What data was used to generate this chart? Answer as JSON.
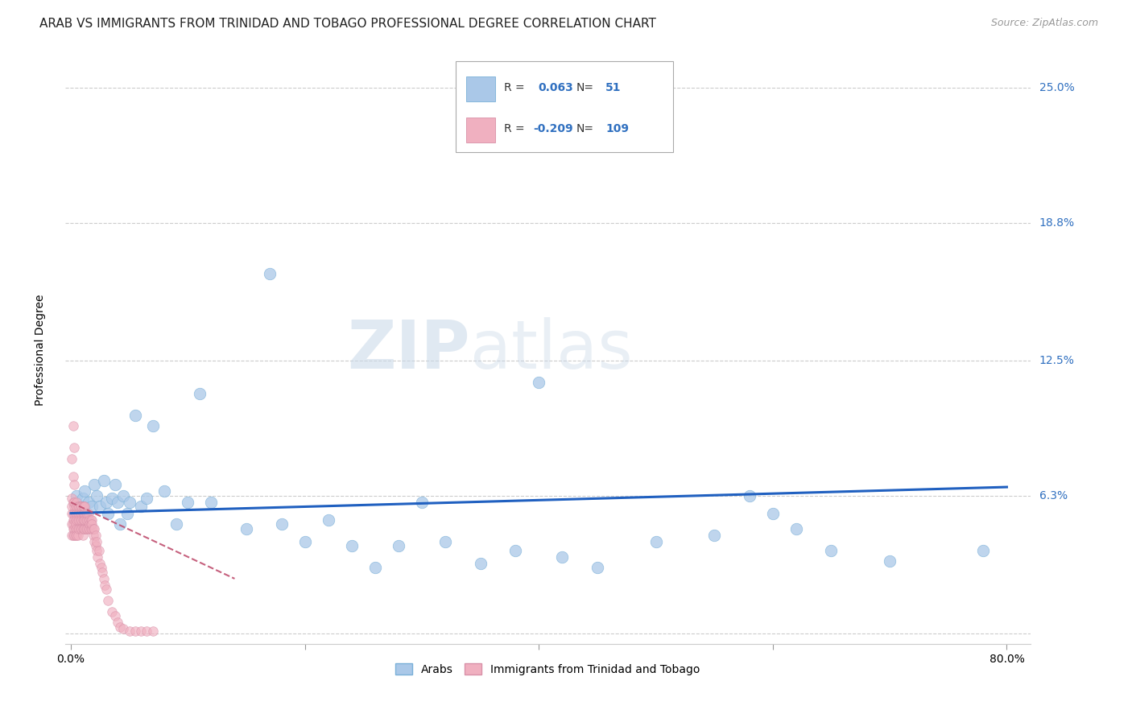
{
  "title": "ARAB VS IMMIGRANTS FROM TRINIDAD AND TOBAGO PROFESSIONAL DEGREE CORRELATION CHART",
  "source": "Source: ZipAtlas.com",
  "ylabel": "Professional Degree",
  "y_ticks": [
    0.0,
    0.063,
    0.125,
    0.188,
    0.25
  ],
  "y_tick_labels": [
    "",
    "6.3%",
    "12.5%",
    "18.8%",
    "25.0%"
  ],
  "x_ticks": [
    0.0,
    0.2,
    0.4,
    0.6,
    0.8
  ],
  "x_tick_labels": [
    "0.0%",
    "",
    "",
    "",
    "80.0%"
  ],
  "xlim": [
    -0.005,
    0.82
  ],
  "ylim": [
    -0.005,
    0.265
  ],
  "background_color": "#ffffff",
  "watermark_zip": "ZIP",
  "watermark_atlas": "atlas",
  "title_fontsize": 11,
  "axis_label_fontsize": 10,
  "tick_fontsize": 10,
  "source_fontsize": 9,
  "blue_R": 0.063,
  "blue_N": 51,
  "pink_R": -0.209,
  "pink_N": 109,
  "blue_x": [
    0.005,
    0.008,
    0.01,
    0.012,
    0.015,
    0.018,
    0.02,
    0.022,
    0.025,
    0.028,
    0.03,
    0.032,
    0.035,
    0.038,
    0.04,
    0.042,
    0.045,
    0.048,
    0.05,
    0.055,
    0.06,
    0.065,
    0.07,
    0.08,
    0.09,
    0.1,
    0.11,
    0.12,
    0.15,
    0.17,
    0.2,
    0.22,
    0.24,
    0.26,
    0.28,
    0.3,
    0.32,
    0.35,
    0.38,
    0.42,
    0.45,
    0.5,
    0.55,
    0.58,
    0.6,
    0.62,
    0.65,
    0.7,
    0.78,
    0.18,
    0.4
  ],
  "blue_y": [
    0.063,
    0.058,
    0.062,
    0.065,
    0.06,
    0.058,
    0.068,
    0.063,
    0.058,
    0.07,
    0.06,
    0.055,
    0.062,
    0.068,
    0.06,
    0.05,
    0.063,
    0.055,
    0.06,
    0.1,
    0.058,
    0.062,
    0.095,
    0.065,
    0.05,
    0.06,
    0.11,
    0.06,
    0.048,
    0.165,
    0.042,
    0.052,
    0.04,
    0.03,
    0.04,
    0.06,
    0.042,
    0.032,
    0.038,
    0.035,
    0.03,
    0.042,
    0.045,
    0.063,
    0.055,
    0.048,
    0.038,
    0.033,
    0.038,
    0.05,
    0.115
  ],
  "pink_x": [
    0.001,
    0.001,
    0.001,
    0.001,
    0.001,
    0.002,
    0.002,
    0.002,
    0.002,
    0.002,
    0.002,
    0.003,
    0.003,
    0.003,
    0.003,
    0.003,
    0.003,
    0.004,
    0.004,
    0.004,
    0.004,
    0.004,
    0.004,
    0.005,
    0.005,
    0.005,
    0.005,
    0.005,
    0.005,
    0.006,
    0.006,
    0.006,
    0.006,
    0.006,
    0.007,
    0.007,
    0.007,
    0.007,
    0.008,
    0.008,
    0.008,
    0.008,
    0.009,
    0.009,
    0.009,
    0.009,
    0.01,
    0.01,
    0.01,
    0.01,
    0.01,
    0.011,
    0.011,
    0.011,
    0.011,
    0.012,
    0.012,
    0.012,
    0.012,
    0.013,
    0.013,
    0.013,
    0.014,
    0.014,
    0.014,
    0.015,
    0.015,
    0.015,
    0.016,
    0.016,
    0.016,
    0.017,
    0.017,
    0.017,
    0.018,
    0.018,
    0.018,
    0.019,
    0.019,
    0.02,
    0.02,
    0.021,
    0.021,
    0.022,
    0.022,
    0.023,
    0.024,
    0.025,
    0.026,
    0.027,
    0.028,
    0.029,
    0.03,
    0.032,
    0.035,
    0.038,
    0.04,
    0.042,
    0.045,
    0.05,
    0.055,
    0.06,
    0.065,
    0.07,
    0.001,
    0.002,
    0.002,
    0.003,
    0.003
  ],
  "pink_y": [
    0.055,
    0.05,
    0.058,
    0.045,
    0.062,
    0.048,
    0.052,
    0.055,
    0.06,
    0.045,
    0.05,
    0.048,
    0.055,
    0.052,
    0.058,
    0.045,
    0.06,
    0.048,
    0.055,
    0.052,
    0.058,
    0.045,
    0.05,
    0.048,
    0.055,
    0.052,
    0.058,
    0.045,
    0.06,
    0.048,
    0.055,
    0.052,
    0.058,
    0.045,
    0.048,
    0.055,
    0.052,
    0.058,
    0.048,
    0.055,
    0.052,
    0.058,
    0.048,
    0.055,
    0.052,
    0.058,
    0.048,
    0.055,
    0.052,
    0.058,
    0.045,
    0.048,
    0.055,
    0.052,
    0.058,
    0.048,
    0.055,
    0.052,
    0.058,
    0.048,
    0.052,
    0.055,
    0.048,
    0.052,
    0.055,
    0.048,
    0.052,
    0.055,
    0.048,
    0.052,
    0.05,
    0.048,
    0.052,
    0.05,
    0.048,
    0.052,
    0.05,
    0.045,
    0.048,
    0.042,
    0.048,
    0.04,
    0.045,
    0.038,
    0.042,
    0.035,
    0.038,
    0.032,
    0.03,
    0.028,
    0.025,
    0.022,
    0.02,
    0.015,
    0.01,
    0.008,
    0.005,
    0.003,
    0.002,
    0.001,
    0.001,
    0.001,
    0.001,
    0.001,
    0.08,
    0.095,
    0.072,
    0.085,
    0.068
  ],
  "blue_line_x0": 0.0,
  "blue_line_x1": 0.8,
  "blue_line_y0": 0.055,
  "blue_line_y1": 0.067,
  "pink_line_x0": 0.0,
  "pink_line_x1": 0.14,
  "pink_line_y0": 0.06,
  "pink_line_y1": 0.025
}
